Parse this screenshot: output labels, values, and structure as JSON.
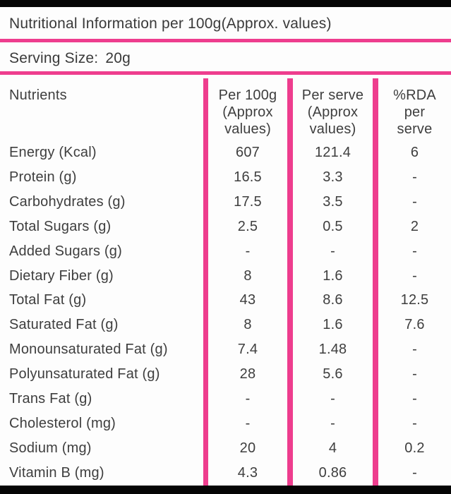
{
  "title": "Nutritional Information per 100g(Approx. values)",
  "serving": {
    "label": "Serving Size:",
    "value": "20g"
  },
  "table": {
    "header": {
      "col1": "Nutrients",
      "col2_lines": [
        "Per 100g",
        "(Approx",
        "values)"
      ],
      "col3_lines": [
        "Per serve",
        "(Approx",
        "values)"
      ],
      "col4_lines": [
        "%RDA",
        "per",
        "serve"
      ]
    },
    "rows": [
      {
        "nutrient": "Energy (Kcal)",
        "per_100g": "607",
        "per_serve": "121.4",
        "rda": "6"
      },
      {
        "nutrient": "Protein (g)",
        "per_100g": "16.5",
        "per_serve": "3.3",
        "rda": "-"
      },
      {
        "nutrient": "Carbohydrates (g)",
        "per_100g": "17.5",
        "per_serve": "3.5",
        "rda": "-"
      },
      {
        "nutrient": "Total Sugars (g)",
        "per_100g": "2.5",
        "per_serve": "0.5",
        "rda": "2"
      },
      {
        "nutrient": "Added Sugars (g)",
        "per_100g": "-",
        "per_serve": "-",
        "rda": "-"
      },
      {
        "nutrient": "Dietary Fiber (g)",
        "per_100g": "8",
        "per_serve": "1.6",
        "rda": "-"
      },
      {
        "nutrient": "Total Fat (g)",
        "per_100g": "43",
        "per_serve": "8.6",
        "rda": "12.5"
      },
      {
        "nutrient": "Saturated Fat (g)",
        "per_100g": "8",
        "per_serve": "1.6",
        "rda": "7.6"
      },
      {
        "nutrient": "Monounsaturated Fat (g)",
        "per_100g": "7.4",
        "per_serve": "1.48",
        "rda": "-"
      },
      {
        "nutrient": "Polyunsaturated Fat (g)",
        "per_100g": "28",
        "per_serve": "5.6",
        "rda": "-"
      },
      {
        "nutrient": "Trans Fat (g)",
        "per_100g": "-",
        "per_serve": "-",
        "rda": "-"
      },
      {
        "nutrient": "Cholesterol (mg)",
        "per_100g": "-",
        "per_serve": "-",
        "rda": "-"
      },
      {
        "nutrient": "Sodium (mg)",
        "per_100g": "20",
        "per_serve": "4",
        "rda": "0.2"
      },
      {
        "nutrient": "Vitamin B (mg)",
        "per_100g": "4.3",
        "per_serve": "0.86",
        "rda": "-"
      }
    ]
  },
  "colors": {
    "accent_pink": "#ee3d8e",
    "text": "#3e3e3e",
    "background": "#fdfdfd",
    "bar": "#050505"
  }
}
